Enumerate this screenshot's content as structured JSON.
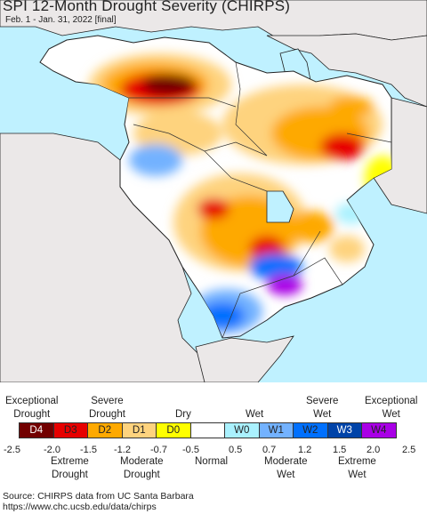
{
  "header": {
    "title": "SPI 12-Month Drought Severity (CHIRPS)",
    "subtitle": "Feb. 1 - Jan. 31, 2022 [final]"
  },
  "map": {
    "region": "Middle East",
    "colors": {
      "water": "#bff1ff",
      "land_outside": "#ebe8e8",
      "normal": "#ffffff",
      "border": "#222222"
    }
  },
  "legend": {
    "categories": [
      {
        "code": "D4",
        "color": "#720000"
      },
      {
        "code": "D3",
        "color": "#e70000"
      },
      {
        "code": "D2",
        "color": "#fea901"
      },
      {
        "code": "D1",
        "color": "#fed37e"
      },
      {
        "code": "D0",
        "color": "#ffff00"
      },
      {
        "code": "",
        "color": "#ffffff"
      },
      {
        "code": "W0",
        "color": "#aaf1fe"
      },
      {
        "code": "W1",
        "color": "#73b2ff"
      },
      {
        "code": "W2",
        "color": "#0070ff"
      },
      {
        "code": "W3",
        "color": "#0043a8"
      },
      {
        "code": "W4",
        "color": "#a900e6"
      }
    ],
    "top_labels": {
      "exceptional_drought": [
        "Exceptional",
        "Drought"
      ],
      "severe_drought": [
        "Severe",
        "Drought"
      ],
      "dry": "Dry",
      "wet": "Wet",
      "severe_wet": [
        "Severe",
        "Wet"
      ],
      "exceptional_wet": [
        "Exceptional",
        "Wet"
      ]
    },
    "ticks": [
      "-2.5",
      "-2.0",
      "-1.5",
      "-1.2",
      "-0.7",
      "-0.5",
      "0.5",
      "0.7",
      "1.2",
      "1.5",
      "2.0",
      "2.5"
    ],
    "bottom_labels": {
      "extreme_drought": [
        "Extreme",
        "Drought"
      ],
      "moderate_drought": [
        "Moderate",
        "Drought"
      ],
      "normal": "Normal",
      "moderate_wet": [
        "Moderate",
        "Wet"
      ],
      "extreme_wet": [
        "Extreme",
        "Wet"
      ]
    }
  },
  "footer": {
    "source_line1": "Source: CHIRPS data from UC Santa Barbara",
    "source_line2": "https://www.chc.ucsb.edu/data/chirps"
  }
}
